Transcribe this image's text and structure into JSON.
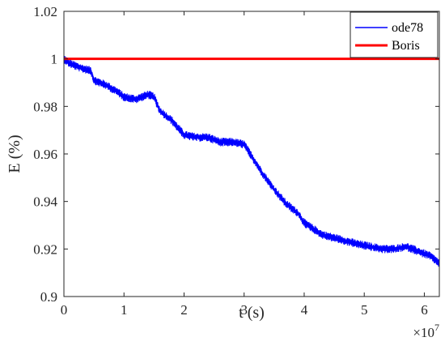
{
  "chart_data": {
    "type": "line",
    "title": "",
    "xlabel": "t (s)",
    "ylabel": "E (%)",
    "x_exponent_label": "×10",
    "x_exponent_power": "7",
    "xlim": [
      0,
      6.25
    ],
    "ylim": [
      0.9,
      1.02
    ],
    "x_ticks": [
      0,
      1,
      2,
      3,
      4,
      5,
      6
    ],
    "x_tick_labels": [
      "0",
      "1",
      "2",
      "3",
      "4",
      "5",
      "6"
    ],
    "y_ticks": [
      0.9,
      0.92,
      0.94,
      0.96,
      0.98,
      1.0,
      1.02
    ],
    "y_tick_labels": [
      "0.9",
      "0.92",
      "0.94",
      "0.96",
      "0.98",
      "1",
      "1.02"
    ],
    "grid": false,
    "legend_position": "top-right",
    "series": [
      {
        "name": "ode78",
        "color": "#0000ff",
        "noise_amplitude": 0.0018,
        "x": [
          0,
          0.1,
          0.3,
          0.45,
          0.5,
          0.7,
          0.9,
          1.0,
          1.2,
          1.4,
          1.5,
          1.6,
          1.8,
          2.0,
          2.2,
          2.4,
          2.6,
          2.8,
          3.0,
          3.1,
          3.2,
          3.3,
          3.5,
          3.7,
          3.9,
          4.0,
          4.3,
          4.6,
          4.9,
          5.1,
          5.3,
          5.5,
          5.7,
          5.9,
          6.1,
          6.25
        ],
        "y": [
          1.0,
          0.998,
          0.996,
          0.995,
          0.991,
          0.989,
          0.986,
          0.984,
          0.983,
          0.985,
          0.984,
          0.978,
          0.974,
          0.968,
          0.967,
          0.967,
          0.965,
          0.965,
          0.964,
          0.96,
          0.956,
          0.952,
          0.945,
          0.939,
          0.935,
          0.931,
          0.926,
          0.924,
          0.922,
          0.921,
          0.92,
          0.92,
          0.921,
          0.919,
          0.917,
          0.914
        ]
      },
      {
        "name": "Boris",
        "color": "#ff0000",
        "x": [
          0,
          6.25
        ],
        "y": [
          1.0,
          1.0
        ]
      }
    ]
  }
}
